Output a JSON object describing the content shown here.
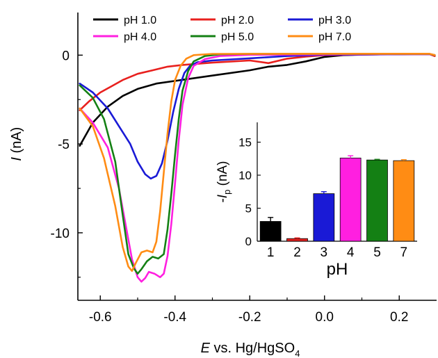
{
  "chart_data": [
    {
      "type": "line",
      "xlabel_italic": "E",
      "xlabel_rest": " vs. Hg/HgSO",
      "xlabel_sub": "4",
      "ylabel_italic": "I",
      "ylabel_rest": " (nA)",
      "xlim": [
        -0.66,
        0.3
      ],
      "ylim": [
        -13.8,
        2.4
      ],
      "xticks": [
        -0.6,
        -0.4,
        -0.2,
        0.0,
        0.2
      ],
      "xtick_labels": [
        "-0.6",
        "-0.4",
        "-0.2",
        "0.0",
        "0.2"
      ],
      "yticks": [
        0,
        -5,
        -10
      ],
      "ytick_labels": [
        "0",
        "-5",
        "-10"
      ],
      "legend_position": "top",
      "series": [
        {
          "name": "pH 1.0",
          "color": "#000000",
          "points": [
            [
              -0.655,
              -5.1
            ],
            [
              -0.62,
              -3.8
            ],
            [
              -0.58,
              -2.9
            ],
            [
              -0.54,
              -2.3
            ],
            [
              -0.5,
              -1.9
            ],
            [
              -0.45,
              -1.6
            ],
            [
              -0.4,
              -1.45
            ],
            [
              -0.3,
              -1.15
            ],
            [
              -0.2,
              -0.85
            ],
            [
              -0.15,
              -0.65
            ],
            [
              -0.1,
              -0.55
            ],
            [
              -0.05,
              -0.35
            ],
            [
              0.0,
              -0.1
            ],
            [
              0.05,
              0.0
            ],
            [
              0.1,
              0.03
            ],
            [
              0.2,
              0.06
            ],
            [
              0.28,
              0.08
            ],
            [
              0.295,
              -0.05
            ]
          ]
        },
        {
          "name": "pH 2.0",
          "color": "#e8201e",
          "points": [
            [
              -0.655,
              -3.1
            ],
            [
              -0.63,
              -2.6
            ],
            [
              -0.6,
              -2.1
            ],
            [
              -0.57,
              -1.75
            ],
            [
              -0.54,
              -1.4
            ],
            [
              -0.5,
              -1.05
            ],
            [
              -0.46,
              -0.85
            ],
            [
              -0.42,
              -0.65
            ],
            [
              -0.38,
              -0.55
            ],
            [
              -0.3,
              -0.42
            ],
            [
              -0.2,
              -0.3
            ],
            [
              -0.15,
              -0.45
            ],
            [
              -0.1,
              -0.2
            ],
            [
              -0.05,
              -0.08
            ],
            [
              0.0,
              0.0
            ],
            [
              0.1,
              0.04
            ],
            [
              0.2,
              0.05
            ],
            [
              0.28,
              0.06
            ],
            [
              0.295,
              -0.05
            ]
          ]
        },
        {
          "name": "pH 3.0",
          "color": "#1a1ad6",
          "points": [
            [
              -0.655,
              -1.6
            ],
            [
              -0.62,
              -2.1
            ],
            [
              -0.58,
              -3.0
            ],
            [
              -0.55,
              -4.0
            ],
            [
              -0.52,
              -5.0
            ],
            [
              -0.5,
              -6.0
            ],
            [
              -0.48,
              -6.7
            ],
            [
              -0.465,
              -6.95
            ],
            [
              -0.45,
              -6.8
            ],
            [
              -0.435,
              -6.1
            ],
            [
              -0.42,
              -4.8
            ],
            [
              -0.405,
              -3.2
            ],
            [
              -0.39,
              -1.9
            ],
            [
              -0.375,
              -1.0
            ],
            [
              -0.36,
              -0.6
            ],
            [
              -0.34,
              -0.4
            ],
            [
              -0.3,
              -0.3
            ],
            [
              -0.2,
              -0.18
            ],
            [
              -0.1,
              -0.05
            ],
            [
              0.0,
              0.02
            ],
            [
              0.2,
              0.05
            ],
            [
              0.28,
              0.06
            ],
            [
              0.295,
              0.0
            ]
          ]
        },
        {
          "name": "pH 4.0",
          "color": "#ff1fe0",
          "points": [
            [
              -0.655,
              -3.0
            ],
            [
              -0.62,
              -3.8
            ],
            [
              -0.58,
              -5.2
            ],
            [
              -0.55,
              -7.5
            ],
            [
              -0.53,
              -9.8
            ],
            [
              -0.515,
              -11.5
            ],
            [
              -0.5,
              -12.5
            ],
            [
              -0.49,
              -12.75
            ],
            [
              -0.48,
              -12.55
            ],
            [
              -0.47,
              -12.2
            ],
            [
              -0.455,
              -12.3
            ],
            [
              -0.44,
              -12.5
            ],
            [
              -0.43,
              -12.3
            ],
            [
              -0.42,
              -11.3
            ],
            [
              -0.41,
              -9.5
            ],
            [
              -0.4,
              -7.2
            ],
            [
              -0.39,
              -4.8
            ],
            [
              -0.38,
              -2.8
            ],
            [
              -0.365,
              -1.3
            ],
            [
              -0.35,
              -0.6
            ],
            [
              -0.32,
              -0.22
            ],
            [
              -0.28,
              -0.05
            ],
            [
              -0.2,
              0.02
            ],
            [
              0.0,
              0.04
            ],
            [
              0.2,
              0.06
            ],
            [
              0.28,
              0.06
            ],
            [
              0.295,
              0.0
            ]
          ]
        },
        {
          "name": "pH 5.0",
          "color": "#148014",
          "points": [
            [
              -0.655,
              -1.7
            ],
            [
              -0.62,
              -2.4
            ],
            [
              -0.59,
              -3.6
            ],
            [
              -0.56,
              -6.0
            ],
            [
              -0.54,
              -9.0
            ],
            [
              -0.525,
              -11.2
            ],
            [
              -0.51,
              -12.0
            ],
            [
              -0.5,
              -12.3
            ],
            [
              -0.49,
              -12.05
            ],
            [
              -0.475,
              -11.6
            ],
            [
              -0.46,
              -11.35
            ],
            [
              -0.445,
              -11.45
            ],
            [
              -0.43,
              -11.2
            ],
            [
              -0.42,
              -9.8
            ],
            [
              -0.41,
              -7.8
            ],
            [
              -0.4,
              -5.6
            ],
            [
              -0.39,
              -3.6
            ],
            [
              -0.38,
              -2.0
            ],
            [
              -0.365,
              -0.9
            ],
            [
              -0.35,
              -0.35
            ],
            [
              -0.32,
              -0.05
            ],
            [
              -0.28,
              0.05
            ],
            [
              -0.2,
              0.07
            ],
            [
              0.0,
              0.07
            ],
            [
              0.2,
              0.07
            ],
            [
              0.28,
              0.07
            ],
            [
              0.295,
              0.0
            ]
          ]
        },
        {
          "name": "pH 7.0",
          "color": "#ff8c14",
          "points": [
            [
              -0.655,
              -3.0
            ],
            [
              -0.62,
              -4.0
            ],
            [
              -0.59,
              -5.8
            ],
            [
              -0.56,
              -8.5
            ],
            [
              -0.54,
              -10.8
            ],
            [
              -0.525,
              -11.9
            ],
            [
              -0.515,
              -12.15
            ],
            [
              -0.505,
              -11.7
            ],
            [
              -0.49,
              -11.1
            ],
            [
              -0.475,
              -11.0
            ],
            [
              -0.46,
              -11.1
            ],
            [
              -0.45,
              -10.5
            ],
            [
              -0.44,
              -8.8
            ],
            [
              -0.43,
              -6.6
            ],
            [
              -0.42,
              -4.4
            ],
            [
              -0.41,
              -2.6
            ],
            [
              -0.4,
              -1.4
            ],
            [
              -0.385,
              -0.6
            ],
            [
              -0.37,
              -0.2
            ],
            [
              -0.35,
              0.0
            ],
            [
              -0.3,
              0.07
            ],
            [
              0.0,
              0.08
            ],
            [
              0.2,
              0.08
            ],
            [
              0.28,
              0.08
            ],
            [
              0.295,
              0.0
            ]
          ]
        }
      ]
    },
    {
      "type": "bar",
      "xlabel": "pH",
      "ylabel_prefix": "-",
      "ylabel_italic": "I",
      "ylabel_sub": "p",
      "ylabel_rest": " (nA)",
      "ylim": [
        0,
        18
      ],
      "yticks": [
        0,
        5,
        10,
        15
      ],
      "ytick_labels": [
        "0",
        "5",
        "10",
        "15"
      ],
      "categories": [
        "1",
        "2",
        "3",
        "4",
        "5",
        "7"
      ],
      "values": [
        3.0,
        0.4,
        7.2,
        12.6,
        12.3,
        12.2
      ],
      "errors": [
        0.6,
        0.1,
        0.3,
        0.35,
        0.1,
        0.15
      ],
      "colors": [
        "#000000",
        "#e8201e",
        "#1a1ad6",
        "#ff1fe0",
        "#148014",
        "#ff8c14"
      ]
    }
  ]
}
